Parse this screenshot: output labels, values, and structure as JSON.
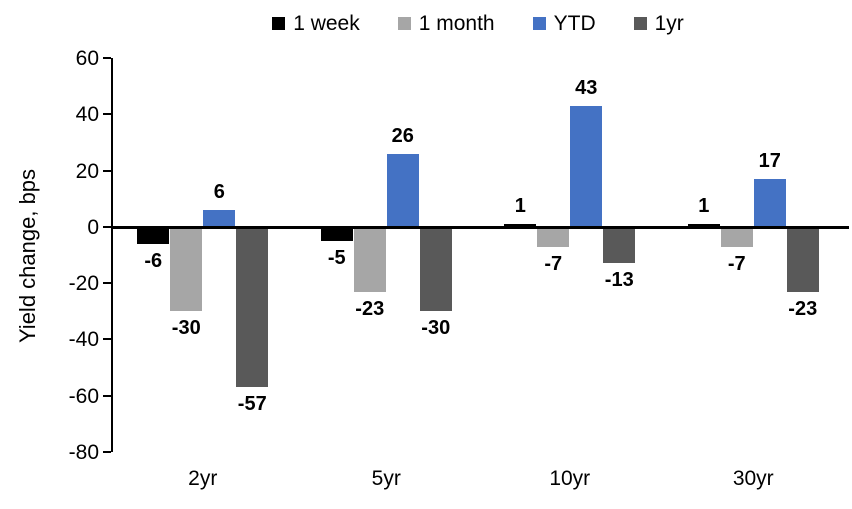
{
  "chart_data": {
    "type": "bar",
    "title": "",
    "ylabel": "Yield change, bps",
    "xlabel": "",
    "categories": [
      "2yr",
      "5yr",
      "10yr",
      "30yr"
    ],
    "series": [
      {
        "name": "1 week",
        "color": "#000000",
        "values": [
          -6,
          -5,
          1,
          1
        ]
      },
      {
        "name": "1 month",
        "color": "#A6A6A6",
        "values": [
          -30,
          -23,
          -7,
          -7
        ]
      },
      {
        "name": "YTD",
        "color": "#4472C4",
        "values": [
          6,
          26,
          43,
          17
        ]
      },
      {
        "name": "1yr",
        "color": "#595959",
        "values": [
          -57,
          -30,
          -13,
          -23
        ]
      }
    ],
    "ylim": [
      -80,
      60
    ],
    "yticks": [
      60,
      40,
      20,
      0,
      -20,
      -40,
      -60,
      -80
    ],
    "grid": false,
    "legend_position": "top",
    "data_labels": true,
    "baseline": 0
  }
}
